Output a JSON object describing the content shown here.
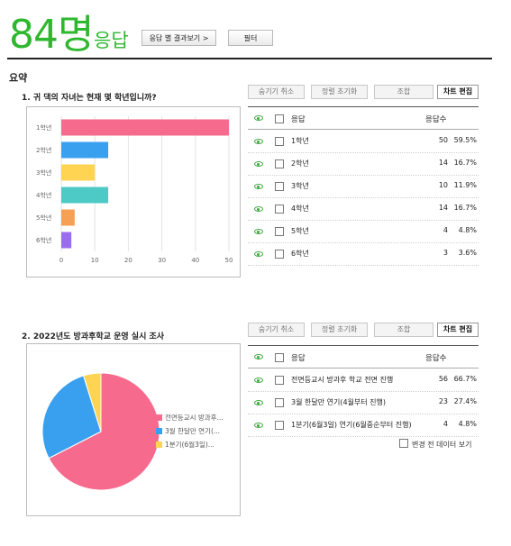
{
  "header": {
    "count": "84명",
    "count_suffix": "응답",
    "by_response_button": "응답 별 결과보기 >",
    "filter_button": "필터"
  },
  "summary_label": "요약",
  "colors": {
    "accent": "#2eb82e",
    "pink": "#f66b8d",
    "blue": "#39a0f0",
    "yellow": "#ffd452",
    "teal": "#4dc9c6",
    "orange": "#f6a055",
    "purple": "#9a6cf0"
  },
  "toolbar": {
    "hide_cancel": "숨기기 취소",
    "reset_sort": "정렬 초기화",
    "combine": "조합",
    "edit_chart": "차트 편집"
  },
  "table_header": {
    "response": "응답",
    "count": "응답수"
  },
  "q1": {
    "title": "1. 귀 댁의 자녀는 현재 몇 학년입니까?",
    "rows": [
      {
        "label": "1학년",
        "count": "50",
        "pct": "59.5%"
      },
      {
        "label": "2학년",
        "count": "14",
        "pct": "16.7%"
      },
      {
        "label": "3학년",
        "count": "10",
        "pct": "11.9%"
      },
      {
        "label": "4학년",
        "count": "14",
        "pct": "16.7%"
      },
      {
        "label": "5학년",
        "count": "4",
        "pct": "4.8%"
      },
      {
        "label": "6학년",
        "count": "3",
        "pct": "3.6%"
      }
    ]
  },
  "q2": {
    "title": "2. 2022년도 방과후학교 운영 실시 조사",
    "rows": [
      {
        "label": "전면등교시 방과후 학교 전면 진행",
        "count": "56",
        "pct": "66.7%"
      },
      {
        "label": "3월 한달만 연기(4월부터 진행)",
        "count": "23",
        "pct": "27.4%"
      },
      {
        "label": "1분기(6월3일) 연기(6월중순부터 진행)",
        "count": "4",
        "pct": "4.8%"
      }
    ],
    "legend": [
      "전면등교시 방과후...",
      "3월 한달만 연기(...",
      "1분기(6월3일)..."
    ],
    "show_before_change": "변경 전 데이터 보기"
  },
  "chart_data": [
    {
      "type": "bar",
      "orientation": "horizontal",
      "categories": [
        "1학년",
        "2학년",
        "3학년",
        "4학년",
        "5학년",
        "6학년"
      ],
      "values": [
        50,
        14,
        10,
        14,
        4,
        3
      ],
      "xlim": [
        0,
        50
      ],
      "xticks": [
        "0",
        "10",
        "20",
        "30",
        "40",
        "50"
      ],
      "colors": [
        "#f66b8d",
        "#39a0f0",
        "#ffd452",
        "#4dc9c6",
        "#f6a055",
        "#9a6cf0"
      ],
      "grid": true
    },
    {
      "type": "pie",
      "categories": [
        "전면등교시 방과후 학교 전면 진행",
        "3월 한달만 연기(4월부터 진행)",
        "1분기(6월3일) 연기(6월중순부터 진행)"
      ],
      "values": [
        56,
        23,
        4
      ],
      "colors": [
        "#f66b8d",
        "#39a0f0",
        "#ffd452"
      ],
      "legend": "right"
    }
  ]
}
